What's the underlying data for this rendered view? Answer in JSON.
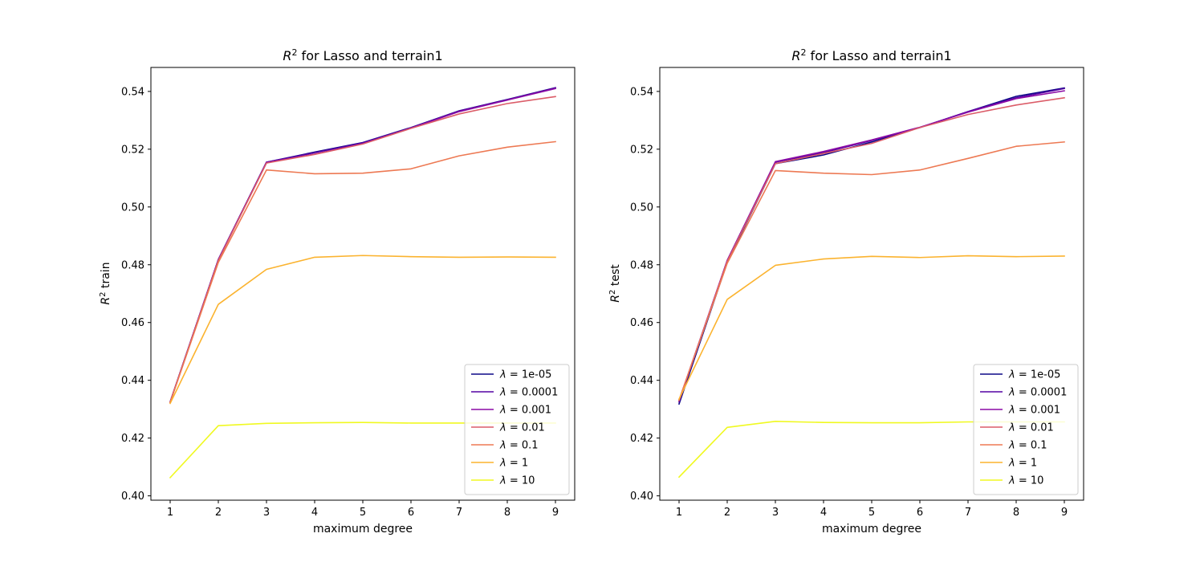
{
  "colors": [
    "#0d0887",
    "#5402a3",
    "#8b0aa5",
    "#db5c68",
    "#ed7953",
    "#fbb32f",
    "#f0f921"
  ],
  "chart_data": [
    {
      "type": "line",
      "title_prefix": "R",
      "title_sup": "2",
      "title_rest": " for Lasso and terrain1",
      "xlabel": "maximum degree",
      "ylabel_prefix": "R",
      "ylabel_sup": "2",
      "ylabel_rest": " train",
      "x": [
        1,
        2,
        3,
        4,
        5,
        6,
        7,
        8,
        9
      ],
      "xlim": [
        0.6,
        9.4
      ],
      "ylim": [
        0.3985,
        0.5483
      ],
      "xticks": [
        1,
        2,
        3,
        4,
        5,
        6,
        7,
        8,
        9
      ],
      "yticks": [
        0.4,
        0.42,
        0.44,
        0.46,
        0.48,
        0.5,
        0.52,
        0.54
      ],
      "ytick_labels": [
        "0.40",
        "0.42",
        "0.44",
        "0.46",
        "0.48",
        "0.50",
        "0.52",
        "0.54"
      ],
      "legend_position": "lower-right",
      "series": [
        {
          "name": "1e-05",
          "values": [
            0.4325,
            0.4818,
            0.5155,
            0.519,
            0.5223,
            0.5275,
            0.5333,
            0.5372,
            0.5413
          ]
        },
        {
          "name": "0.0001",
          "values": [
            0.4325,
            0.4818,
            0.5155,
            0.5188,
            0.5222,
            0.5274,
            0.5332,
            0.5371,
            0.5412
          ]
        },
        {
          "name": "0.001",
          "values": [
            0.4325,
            0.4817,
            0.5154,
            0.5183,
            0.5219,
            0.5273,
            0.533,
            0.537,
            0.541
          ]
        },
        {
          "name": "0.01",
          "values": [
            0.4324,
            0.4815,
            0.5152,
            0.5182,
            0.5218,
            0.5272,
            0.5322,
            0.5358,
            0.5382
          ]
        },
        {
          "name": "0.1",
          "values": [
            0.4323,
            0.4808,
            0.5128,
            0.5115,
            0.5117,
            0.5132,
            0.5177,
            0.5207,
            0.5226
          ]
        },
        {
          "name": "1",
          "values": [
            0.432,
            0.4663,
            0.4784,
            0.4826,
            0.4832,
            0.4828,
            0.4826,
            0.4827,
            0.4826
          ]
        },
        {
          "name": "10",
          "values": [
            0.4063,
            0.4243,
            0.4251,
            0.4253,
            0.4254,
            0.4252,
            0.4252,
            0.4252,
            0.4252
          ]
        }
      ],
      "legend_symbol": "λ",
      "legend_sep": " = "
    },
    {
      "type": "line",
      "title_prefix": "R",
      "title_sup": "2",
      "title_rest": " for Lasso and terrain1",
      "xlabel": "maximum degree",
      "ylabel_prefix": "R",
      "ylabel_sup": "2",
      "ylabel_rest": " test",
      "x": [
        1,
        2,
        3,
        4,
        5,
        6,
        7,
        8,
        9
      ],
      "xlim": [
        0.6,
        9.4
      ],
      "ylim": [
        0.3985,
        0.5483
      ],
      "xticks": [
        1,
        2,
        3,
        4,
        5,
        6,
        7,
        8,
        9
      ],
      "yticks": [
        0.4,
        0.42,
        0.44,
        0.46,
        0.48,
        0.5,
        0.52,
        0.54
      ],
      "ytick_labels": [
        "0.40",
        "0.42",
        "0.44",
        "0.46",
        "0.48",
        "0.50",
        "0.52",
        "0.54"
      ],
      "legend_position": "lower-right",
      "series": [
        {
          "name": "1e-05",
          "values": [
            0.4318,
            0.4808,
            0.515,
            0.518,
            0.5225,
            0.5275,
            0.533,
            0.5383,
            0.5412
          ]
        },
        {
          "name": "0.0001",
          "values": [
            0.4325,
            0.4815,
            0.5155,
            0.5188,
            0.523,
            0.5275,
            0.533,
            0.5378,
            0.541
          ]
        },
        {
          "name": "0.001",
          "values": [
            0.433,
            0.4815,
            0.5157,
            0.5192,
            0.5232,
            0.5276,
            0.5328,
            0.5375,
            0.5402
          ]
        },
        {
          "name": "0.01",
          "values": [
            0.433,
            0.4812,
            0.515,
            0.5185,
            0.522,
            0.5275,
            0.532,
            0.5353,
            0.5378
          ]
        },
        {
          "name": "0.1",
          "values": [
            0.4332,
            0.4805,
            0.5126,
            0.5117,
            0.5112,
            0.5128,
            0.5168,
            0.521,
            0.5225
          ]
        },
        {
          "name": "1",
          "values": [
            0.4335,
            0.468,
            0.4798,
            0.482,
            0.4829,
            0.4825,
            0.4831,
            0.4828,
            0.483
          ]
        },
        {
          "name": "10",
          "values": [
            0.4065,
            0.4237,
            0.4258,
            0.4254,
            0.4253,
            0.4253,
            0.4256,
            0.4256,
            0.4256
          ]
        }
      ],
      "legend_symbol": "λ",
      "legend_sep": " = "
    }
  ]
}
